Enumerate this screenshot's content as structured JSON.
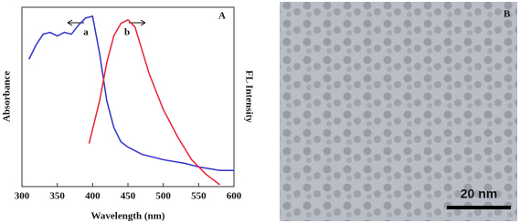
{
  "chart_data": {
    "type": "line",
    "panel_label": "A",
    "xlabel": "Wavelength (nm)",
    "ylabel": "Absorbance",
    "y2label": "FL Intensity",
    "xlim": [
      300,
      600
    ],
    "xticks": [
      300,
      350,
      400,
      450,
      500,
      550,
      600
    ],
    "ylim": [
      0,
      1
    ],
    "y2lim": [
      0,
      1
    ],
    "series": [
      {
        "name": "a",
        "color": "#3333cc",
        "x": [
          310,
          320,
          330,
          340,
          350,
          360,
          370,
          380,
          390,
          400,
          410,
          420,
          430,
          440,
          450,
          470,
          500,
          530,
          550,
          580,
          600
        ],
        "values": [
          0.71,
          0.79,
          0.85,
          0.86,
          0.84,
          0.86,
          0.85,
          0.9,
          0.94,
          0.95,
          0.74,
          0.48,
          0.33,
          0.25,
          0.22,
          0.18,
          0.15,
          0.13,
          0.11,
          0.09,
          0.09
        ]
      },
      {
        "name": "b",
        "color": "#e8243c",
        "axis": "y2",
        "x": [
          395,
          410,
          420,
          430,
          440,
          450,
          460,
          470,
          480,
          500,
          520,
          540,
          560,
          580
        ],
        "values": [
          0.24,
          0.48,
          0.69,
          0.84,
          0.91,
          0.93,
          0.89,
          0.76,
          0.63,
          0.43,
          0.28,
          0.15,
          0.07,
          0.01
        ]
      }
    ]
  },
  "image_panel": {
    "label": "B",
    "scale_bar": "20 nm"
  }
}
